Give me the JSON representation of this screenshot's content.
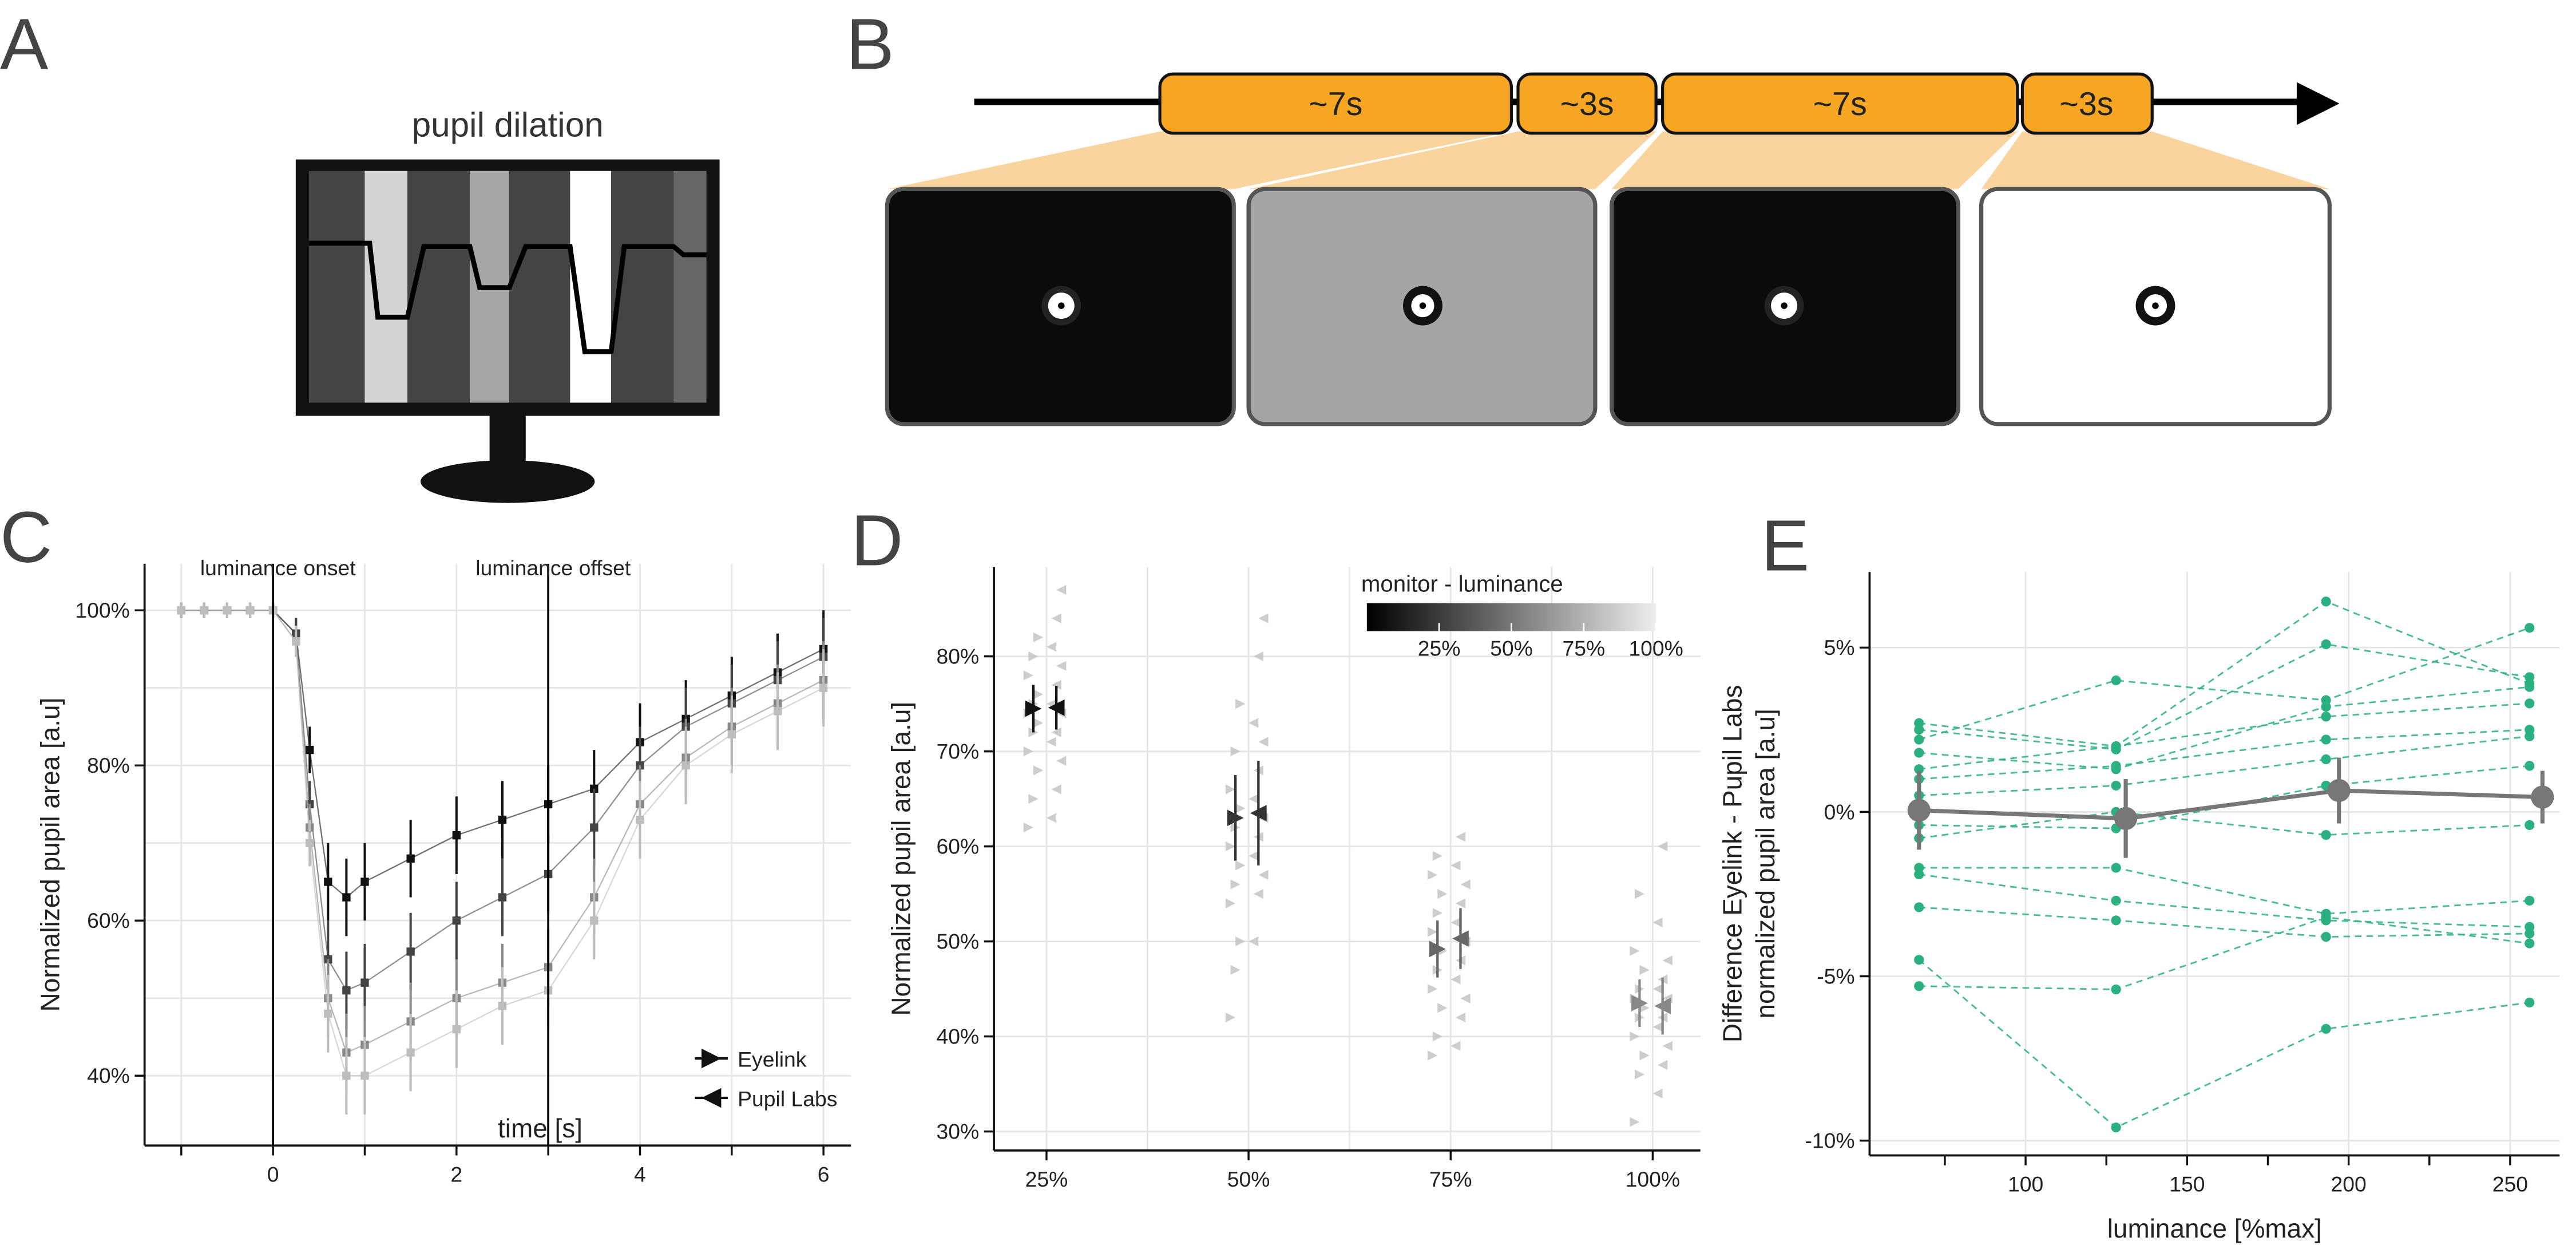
{
  "panels": {
    "A": {
      "letter": "A",
      "title": "pupil dilation"
    },
    "B": {
      "letter": "B",
      "segments": [
        "~7s",
        "~3s",
        "~7s",
        "~3s"
      ]
    }
  },
  "chart_data": [
    {
      "panel": "C",
      "type": "line",
      "xlabel": "time [s]",
      "ylabel": "Normalized pupil area [a.u]",
      "marker": "square",
      "x": [
        -1,
        -0.75,
        -0.5,
        -0.25,
        0,
        0.25,
        0.4,
        0.6,
        0.8,
        1,
        1.5,
        2,
        2.5,
        3,
        3.5,
        4,
        4.5,
        5,
        5.5,
        6
      ],
      "series": [
        {
          "color": "#111111",
          "values": [
            100,
            100,
            100,
            100,
            100,
            97,
            82,
            65,
            63,
            65,
            68,
            71,
            73,
            75,
            77,
            83,
            86,
            89,
            92,
            95
          ],
          "errors": [
            1,
            1,
            1,
            1,
            1,
            2,
            3,
            5,
            5,
            5,
            5,
            5,
            5,
            5,
            5,
            5,
            5,
            5,
            5,
            5
          ]
        },
        {
          "color": "#444444",
          "values": [
            100,
            100,
            100,
            100,
            100,
            97,
            75,
            55,
            51,
            52,
            56,
            60,
            63,
            66,
            72,
            80,
            85,
            88,
            91,
            94
          ],
          "errors": [
            1,
            1,
            1,
            1,
            1,
            2,
            3,
            5,
            5,
            5,
            5,
            5,
            5,
            5,
            5,
            5,
            5,
            5,
            5,
            5
          ]
        },
        {
          "color": "#888888",
          "values": [
            100,
            100,
            100,
            100,
            100,
            96,
            72,
            50,
            43,
            44,
            47,
            50,
            52,
            54,
            63,
            75,
            81,
            85,
            88,
            91
          ],
          "errors": [
            1,
            1,
            1,
            1,
            1,
            2,
            3,
            5,
            5,
            5,
            5,
            5,
            5,
            5,
            5,
            5,
            5,
            5,
            5,
            5
          ]
        },
        {
          "color": "#bdbdbd",
          "values": [
            100,
            100,
            100,
            100,
            100,
            96,
            70,
            48,
            40,
            40,
            43,
            46,
            49,
            51,
            60,
            73,
            80,
            84,
            87,
            90
          ],
          "errors": [
            1,
            1,
            1,
            1,
            1,
            2,
            3,
            5,
            5,
            5,
            5,
            5,
            5,
            5,
            5,
            5,
            5,
            5,
            5,
            5
          ]
        }
      ],
      "xlim": [
        -1.4,
        6.3
      ],
      "ylim": [
        31,
        106
      ],
      "xticks": [
        0,
        2,
        4,
        6
      ],
      "xminor": [
        -1,
        1,
        3,
        5
      ],
      "yticks": [
        {
          "value": 40,
          "label": "40%"
        },
        {
          "value": 60,
          "label": "60%"
        },
        {
          "value": 80,
          "label": "80%"
        },
        {
          "value": 100,
          "label": "100%"
        }
      ],
      "yminor": [
        50,
        70,
        90
      ],
      "grid": true,
      "minor_grid": true,
      "annotations": [
        {
          "x": 0,
          "text": "luminance onset"
        },
        {
          "x": 3,
          "text": "luminance offset"
        }
      ],
      "legend": [
        {
          "label": "Eyelink",
          "marker": "right"
        },
        {
          "label": "Pupil Labs",
          "marker": "left"
        }
      ],
      "legend_position": "lower right"
    },
    {
      "panel": "D",
      "type": "dot",
      "ylabel": "Normalized pupil area [a.u]",
      "categories": [
        "25%",
        "50%",
        "75%",
        "100%"
      ],
      "colors": [
        "#111111",
        "#333333",
        "#666666",
        "#888888"
      ],
      "points_color": "#c4c4c4",
      "series": [
        {
          "marker": "right",
          "values": [
            74.5,
            63,
            49.2,
            43.5
          ],
          "errors": [
            2.5,
            4.5,
            3,
            2.5
          ],
          "points": [
            [
              62,
              65,
              68,
              70,
              72,
              73,
              74,
              75,
              76,
              78,
              80,
              82
            ],
            [
              42,
              47,
              50,
              54,
              56,
              58,
              60,
              62,
              64,
              66,
              70,
              75
            ],
            [
              38,
              40,
              43,
              45,
              47,
              49,
              51,
              53,
              55,
              57,
              59
            ],
            [
              31,
              36,
              38,
              40,
              42,
              43,
              44,
              45,
              47,
              49,
              55
            ]
          ]
        },
        {
          "marker": "left",
          "values": [
            74.6,
            63.5,
            50.3,
            43.2
          ],
          "errors": [
            2.3,
            5.5,
            3.2,
            3
          ],
          "points": [
            [
              63,
              66,
              69,
              71,
              72,
              74,
              75,
              77,
              79,
              81,
              84,
              87
            ],
            [
              50,
              55,
              57,
              59,
              61,
              63,
              65,
              68,
              71,
              73,
              80,
              84
            ],
            [
              39,
              42,
              44,
              46,
              48,
              50,
              52,
              54,
              56,
              58,
              61
            ],
            [
              34,
              37,
              39,
              41,
              42,
              44,
              45,
              46,
              48,
              52,
              60
            ]
          ]
        }
      ],
      "ylim": [
        28,
        89.4
      ],
      "yticks": [
        {
          "value": 30,
          "label": "30%"
        },
        {
          "value": 40,
          "label": "40%"
        },
        {
          "value": 50,
          "label": "50%"
        },
        {
          "value": 60,
          "label": "60%"
        },
        {
          "value": 70,
          "label": "70%"
        },
        {
          "value": 80,
          "label": "80%"
        }
      ],
      "grid": true,
      "colorbar": {
        "label": "monitor - luminance",
        "lim": [
          0,
          100
        ],
        "ticks": [
          {
            "value": 25,
            "label": "25%"
          },
          {
            "value": 50,
            "label": "50%"
          },
          {
            "value": 75,
            "label": "75%"
          },
          {
            "value": 100,
            "label": "100%"
          }
        ]
      }
    },
    {
      "panel": "E",
      "type": "line",
      "xlabel": "luminance [%max]",
      "ylabel": [
        "Difference Eyelink - Pupil Labs",
        "normalized pupil area [a.u]"
      ],
      "marker": "circle",
      "subjects": {
        "color": "#2bb07f",
        "x": [
          67,
          128,
          193,
          256
        ],
        "values": [
          [
            2.7,
            2.0,
            6.4,
            3.9
          ],
          [
            2.5,
            1.9,
            5.1,
            4.1
          ],
          [
            2.2,
            4.0,
            3.4,
            5.6
          ],
          [
            1.8,
            1.3,
            3.2,
            3.8
          ],
          [
            1.3,
            2.0,
            2.9,
            3.3
          ],
          [
            1.0,
            1.4,
            2.2,
            2.5
          ],
          [
            0.5,
            0.8,
            1.6,
            2.3
          ],
          [
            -0.4,
            -0.5,
            0.8,
            1.4
          ],
          [
            -0.8,
            0.0,
            -0.7,
            -0.4
          ],
          [
            -1.7,
            -1.7,
            -3.1,
            -2.7
          ],
          [
            -1.9,
            -2.7,
            -3.3,
            -3.5
          ],
          [
            -2.9,
            -3.3,
            -3.8,
            -3.7
          ],
          [
            -4.5,
            -9.6,
            -6.6,
            -5.8
          ],
          [
            -5.3,
            -5.4,
            -3.2,
            -4.0
          ]
        ]
      },
      "series": [
        {
          "color": "#777777",
          "x": [
            67,
            131,
            197,
            260
          ],
          "values": [
            0.05,
            -0.2,
            0.65,
            0.45
          ],
          "errors": [
            1.2,
            1.2,
            1.0,
            0.8
          ]
        }
      ],
      "xlim": [
        51.7,
        265.3
      ],
      "ylim": [
        -10.45,
        7.3
      ],
      "xticks": [
        100,
        150,
        200,
        250
      ],
      "xminor": [
        75,
        125,
        175,
        225
      ],
      "yticks": [
        {
          "value": -10,
          "label": "-10%"
        },
        {
          "value": -5,
          "label": "-5%"
        },
        {
          "value": 0,
          "label": "0%"
        },
        {
          "value": 5,
          "label": "5%"
        }
      ],
      "grid": true
    }
  ]
}
